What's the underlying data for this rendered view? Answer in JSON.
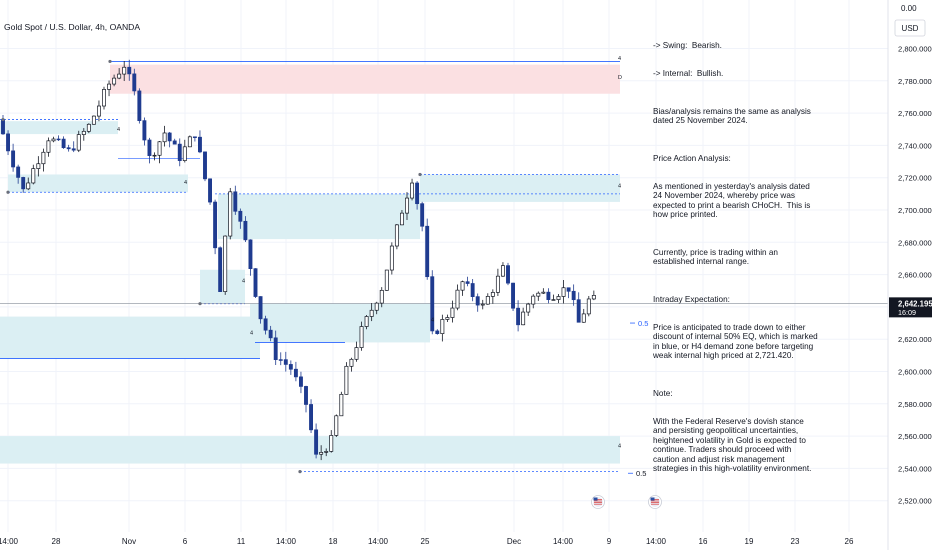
{
  "title": "Gold Spot / U.S. Dollar, 4h, OANDA",
  "colors": {
    "up_candle": "#131722",
    "down_candle": "#1f3b8f",
    "zone_blue": "#dbeff3",
    "zone_red": "#fbe0e2",
    "level_line": "#2962ff",
    "price_line": "#9aa0aa",
    "price_tag": "#131722",
    "grid": "#f0f3fa",
    "axis_text": "#131722"
  },
  "notes": {
    "swing": "-> Swing:  Bearish.",
    "internal": "-> Internal:  Bullish.",
    "bias": "Bias/analysis remains the same as analysis dated 25 November 2024.",
    "pa_heading": "Price Action Analysis:",
    "pa_body": "As mentioned in yesterday's analysis dated 24 November 2024, whereby price was expected to print a bearish CHoCH.  This is how price printed.",
    "current": "Currently, price is trading within an established internal range.",
    "intraday_heading": "Intraday Expectation:",
    "intraday_body": "Price is anticipated to trade down to either discount of internal 50% EQ, which is marked in blue, or H4 demand zone before targeting weak internal high priced at 2,721.420.",
    "note_heading": "Note:",
    "note_body": "With the Federal Reserve's dovish stance and persisting geopolitical uncertainties, heightened volatility in Gold is expected to continue. Traders should proceed with caution and adjust risk management strategies in this high-volatility environment."
  },
  "chart_data": {
    "type": "candlestick",
    "title": "Gold Spot / U.S. Dollar, 4h, OANDA",
    "currency": "USD",
    "y_axis": {
      "ticks": [
        "2,800.000",
        "2,780.000",
        "2,760.000",
        "2,740.000",
        "2,720.000",
        "2,700.000",
        "2,680.000",
        "2,660.000",
        "2,640.000",
        "2,620.000",
        "2,600.000",
        "2,580.000",
        "2,560.000",
        "2,540.000",
        "2,520.000"
      ],
      "tick_values": [
        2800,
        2780,
        2760,
        2740,
        2720,
        2700,
        2680,
        2660,
        2640,
        2620,
        2600,
        2580,
        2560,
        2540,
        2520
      ],
      "top_label": "0.00",
      "range": [
        2515,
        2820
      ]
    },
    "x_axis": {
      "labels": [
        "14:00",
        "28",
        "Nov",
        "6",
        "11",
        "14:00",
        "18",
        "14:00",
        "25",
        "Dec",
        "14:00",
        "9",
        "14:00",
        "16",
        "19",
        "23",
        "26"
      ]
    },
    "last_price": "2,642.195",
    "countdown": "16:09",
    "eq_labels": [
      "0.5",
      "0.5"
    ],
    "zone_labels": [
      "4",
      "D",
      "4",
      "4",
      "4",
      "4",
      "4",
      "4",
      "4"
    ],
    "anchors": [
      [
        0,
        2756
      ],
      [
        5,
        2712
      ],
      [
        10,
        2745
      ],
      [
        14,
        2736
      ],
      [
        18,
        2752
      ],
      [
        22,
        2778
      ],
      [
        25,
        2790
      ],
      [
        27,
        2772
      ],
      [
        30,
        2732
      ],
      [
        33,
        2748
      ],
      [
        36,
        2733
      ],
      [
        39,
        2748
      ],
      [
        42,
        2705
      ],
      [
        44,
        2652
      ],
      [
        46,
        2714
      ],
      [
        49,
        2680
      ],
      [
        52,
        2634
      ],
      [
        55,
        2610
      ],
      [
        58,
        2602
      ],
      [
        61,
        2580
      ],
      [
        63,
        2547
      ],
      [
        66,
        2557
      ],
      [
        69,
        2600
      ],
      [
        72,
        2625
      ],
      [
        76,
        2652
      ],
      [
        80,
        2700
      ],
      [
        82,
        2720
      ],
      [
        84,
        2690
      ],
      [
        86,
        2622
      ],
      [
        89,
        2635
      ],
      [
        92,
        2655
      ],
      [
        96,
        2640
      ],
      [
        100,
        2663
      ],
      [
        103,
        2630
      ],
      [
        106,
        2648
      ],
      [
        110,
        2648
      ],
      [
        113,
        2652
      ],
      [
        115,
        2630
      ],
      [
        117,
        2644
      ]
    ],
    "candle_count": 118
  }
}
